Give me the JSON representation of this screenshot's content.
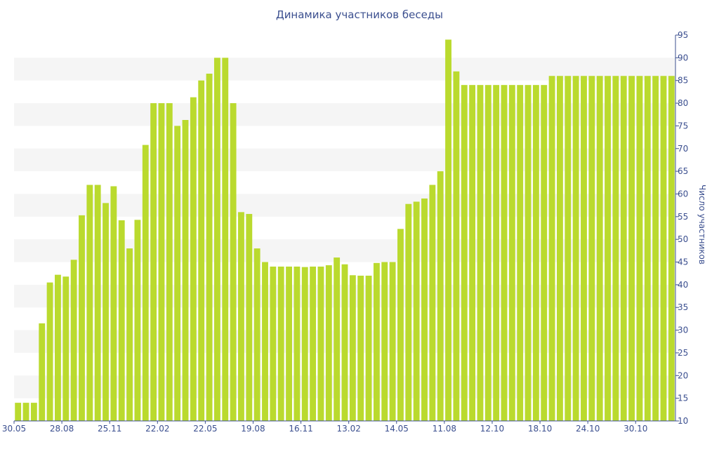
{
  "chart_data": {
    "type": "bar",
    "title": "Динамика участников беседы",
    "xlabel": "",
    "ylabel": "Число участников",
    "ylim": [
      10,
      95
    ],
    "y_ticks": [
      10,
      15,
      20,
      25,
      30,
      35,
      40,
      45,
      50,
      55,
      60,
      65,
      70,
      75,
      80,
      85,
      90,
      95
    ],
    "x_tick_labels": [
      {
        "index": 0,
        "label": "30.05"
      },
      {
        "index": 6,
        "label": "28.08"
      },
      {
        "index": 12,
        "label": "25.11"
      },
      {
        "index": 18,
        "label": "22.02"
      },
      {
        "index": 24,
        "label": "22.05"
      },
      {
        "index": 30,
        "label": "19.08"
      },
      {
        "index": 36,
        "label": "16.11"
      },
      {
        "index": 42,
        "label": "13.02"
      },
      {
        "index": 48,
        "label": "14.05"
      },
      {
        "index": 54,
        "label": "11.08"
      },
      {
        "index": 60,
        "label": "12.10"
      },
      {
        "index": 66,
        "label": "18.10"
      },
      {
        "index": 72,
        "label": "24.10"
      },
      {
        "index": 78,
        "label": "30.10"
      }
    ],
    "values": [
      14,
      14,
      14,
      31.5,
      40.5,
      42.2,
      41.8,
      45.5,
      55.3,
      62,
      62,
      58,
      61.7,
      54.2,
      48,
      54.3,
      70.8,
      80,
      80,
      80,
      75,
      76.3,
      81.3,
      85,
      86.5,
      90,
      90,
      80,
      56,
      55.6,
      48,
      45,
      44,
      44,
      44,
      44,
      43.9,
      44,
      44,
      44.3,
      46,
      44.5,
      42.1,
      42,
      42,
      44.8,
      45,
      45,
      52.3,
      57.8,
      58.3,
      59,
      62,
      65,
      94,
      87,
      84,
      84,
      84,
      84,
      84,
      84,
      84,
      84,
      84,
      84,
      84,
      86,
      86,
      86,
      86,
      86,
      86,
      86,
      86,
      86,
      86,
      86,
      86,
      86,
      86,
      86,
      86
    ],
    "bar_color": "#bada2e",
    "band_color": "#f5f5f5",
    "axis_color": "#3b4f8f",
    "grid": "alternating horizontal bands"
  }
}
